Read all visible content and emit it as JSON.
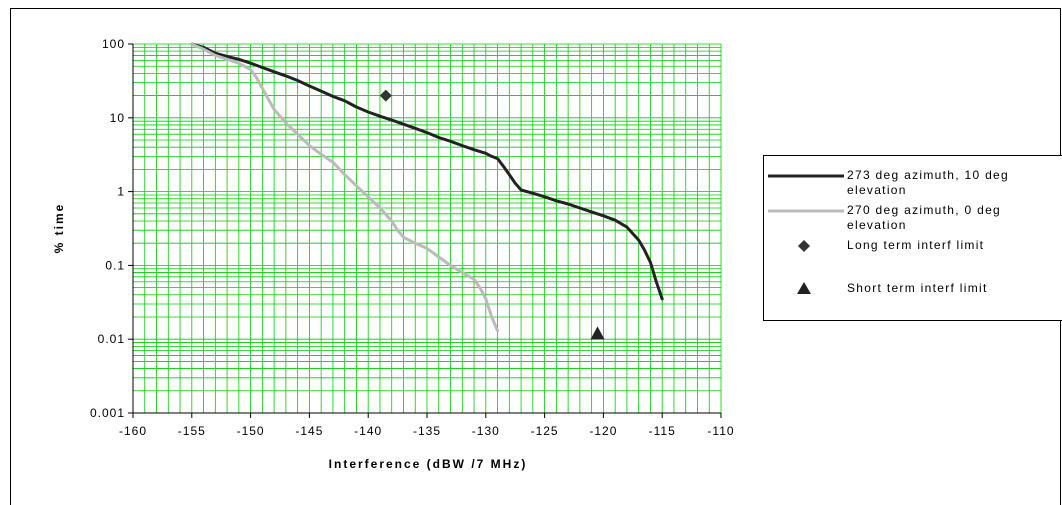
{
  "chart_data": {
    "type": "line",
    "title": "",
    "xlabel": "Interference (dBW /7 MHz)",
    "ylabel": "% time",
    "xlim": [
      -160,
      -110
    ],
    "ylim": [
      0.001,
      100
    ],
    "y_scale": "log",
    "grid": true,
    "grid_color": "#00cc00",
    "legend_position": "right",
    "x_ticks": [
      -160,
      -155,
      -150,
      -145,
      -140,
      -135,
      -130,
      -125,
      -120,
      -115,
      -110
    ],
    "x_tick_labels": [
      "-160",
      "-155",
      "-150",
      "-145",
      "-140",
      "-135",
      "-130",
      "-125",
      "-120",
      "-115",
      "-110"
    ],
    "y_ticks": [
      0.001,
      0.01,
      0.1,
      1,
      10,
      100
    ],
    "y_tick_labels": [
      "0.001",
      "0.01",
      "0.1",
      "1",
      "10",
      "100"
    ],
    "series": [
      {
        "name": "273 deg azimuth, 10 deg elevation",
        "color": "#222222",
        "type": "line",
        "x": [
          -155,
          -154,
          -153,
          -152,
          -151,
          -150,
          -149,
          -148,
          -147,
          -146,
          -145,
          -144,
          -143,
          -142,
          -141,
          -140,
          -139,
          -138,
          -137,
          -136,
          -135,
          -134,
          -133,
          -132,
          -131,
          -130,
          -129.5,
          -129,
          -128.5,
          -128,
          -127.5,
          -127,
          -126,
          -125,
          -124,
          -123,
          -122,
          -121,
          -120,
          -119,
          -118,
          -117.5,
          -117,
          -116.5,
          -116,
          -115.5,
          -115
        ],
        "y": [
          100,
          90,
          75,
          68,
          62,
          55,
          48,
          42,
          37,
          32,
          27,
          23,
          19.5,
          17,
          14,
          12,
          10.5,
          9.3,
          8.2,
          7.2,
          6.3,
          5.4,
          4.8,
          4.2,
          3.7,
          3.3,
          3.0,
          2.8,
          2.2,
          1.7,
          1.3,
          1.05,
          0.95,
          0.85,
          0.75,
          0.68,
          0.6,
          0.53,
          0.47,
          0.41,
          0.33,
          0.27,
          0.22,
          0.16,
          0.11,
          0.06,
          0.035
        ]
      },
      {
        "name": "270 deg azimuth, 0 deg elevation",
        "color": "#bbbbbb",
        "type": "line",
        "x": [
          -155,
          -154,
          -153,
          -152,
          -151,
          -150,
          -149.5,
          -149,
          -148.5,
          -148,
          -147,
          -146,
          -145,
          -144,
          -143,
          -142,
          -141,
          -140,
          -139,
          -138,
          -137.5,
          -137,
          -136,
          -135,
          -134,
          -133,
          -132,
          -131,
          -130.5,
          -130,
          -129.5,
          -129
        ],
        "y": [
          100,
          85,
          70,
          62,
          55,
          45,
          35,
          25,
          18,
          13,
          8.5,
          6,
          4.2,
          3.2,
          2.5,
          1.7,
          1.2,
          0.85,
          0.6,
          0.4,
          0.3,
          0.24,
          0.2,
          0.17,
          0.13,
          0.1,
          0.08,
          0.065,
          0.05,
          0.035,
          0.02,
          0.013
        ]
      },
      {
        "name": "Long term interf limit",
        "color": "#333333",
        "type": "scatter",
        "marker": "diamond",
        "x": [
          -138.5
        ],
        "y": [
          20
        ]
      },
      {
        "name": "Short term interf limit",
        "color": "#222222",
        "type": "scatter",
        "marker": "triangle",
        "x": [
          -120.5
        ],
        "y": [
          0.012
        ]
      }
    ]
  }
}
